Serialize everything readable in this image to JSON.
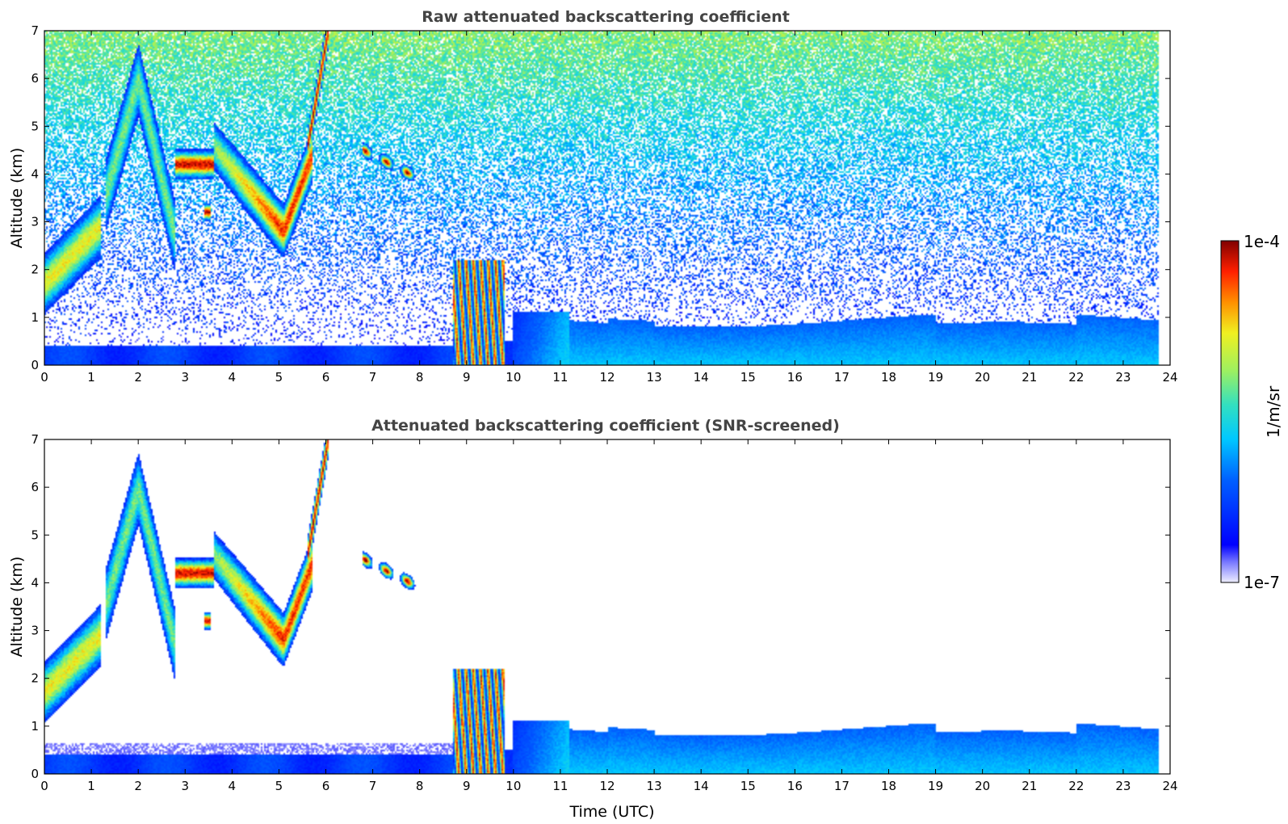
{
  "chart_data": [
    {
      "type": "heatmap",
      "title": "Raw attenuated backscattering coefficient",
      "xlabel": "",
      "ylabel": "Altitude (km)",
      "xlim": [
        0,
        24
      ],
      "ylim": [
        0,
        7
      ],
      "xticks": [
        "0",
        "1",
        "2",
        "3",
        "4",
        "5",
        "6",
        "7",
        "8",
        "9",
        "10",
        "11",
        "12",
        "13",
        "14",
        "15",
        "16",
        "17",
        "18",
        "19",
        "20",
        "21",
        "22",
        "23",
        "24"
      ],
      "yticks": [
        "0",
        "1",
        "2",
        "3",
        "4",
        "5",
        "6",
        "7"
      ],
      "data_end_hour": 23.75,
      "screened": false,
      "features": [
        {
          "name": "cloud-1",
          "t": [
            0.0,
            1.2
          ],
          "z": [
            1.4,
            3.3
          ],
          "level": 0.7
        },
        {
          "name": "cloud-2",
          "t": [
            1.3,
            2.8
          ],
          "z": [
            2.4,
            6.2
          ],
          "level": 0.55
        },
        {
          "name": "cloud-3",
          "t": [
            2.8,
            3.6
          ],
          "z": [
            3.9,
            4.5
          ],
          "level": 0.95
        },
        {
          "name": "cloud-4",
          "t": [
            3.6,
            5.7
          ],
          "z": [
            2.3,
            5.0
          ],
          "level": 0.8
        },
        {
          "name": "cloud-5",
          "t": [
            5.6,
            6.0
          ],
          "z": [
            4.0,
            7.0
          ],
          "level": 0.95
        },
        {
          "name": "cloud-6",
          "t": [
            6.8,
            8.0
          ],
          "z": [
            3.7,
            4.6
          ],
          "level": 1.0
        },
        {
          "name": "cloud-7",
          "t": [
            8.7,
            9.8
          ],
          "z": [
            0.0,
            2.2
          ],
          "level": 0.85
        },
        {
          "name": "boundary-layer",
          "t": [
            0.0,
            23.75
          ],
          "z": [
            0.0,
            1.1
          ],
          "level": 0.3
        }
      ]
    },
    {
      "type": "heatmap",
      "title": "Attenuated backscattering coefficient (SNR-screened)",
      "xlabel": "Time (UTC)",
      "ylabel": "Altitude (km)",
      "xlim": [
        0,
        24
      ],
      "ylim": [
        0,
        7
      ],
      "xticks": [
        "0",
        "1",
        "2",
        "3",
        "4",
        "5",
        "6",
        "7",
        "8",
        "9",
        "10",
        "11",
        "12",
        "13",
        "14",
        "15",
        "16",
        "17",
        "18",
        "19",
        "20",
        "21",
        "22",
        "23",
        "24"
      ],
      "yticks": [
        "0",
        "1",
        "2",
        "3",
        "4",
        "5",
        "6",
        "7"
      ],
      "data_end_hour": 23.75,
      "screened": true,
      "features": [
        {
          "name": "cloud-1",
          "t": [
            0.0,
            1.2
          ],
          "z": [
            1.3,
            3.3
          ],
          "level": 0.7
        },
        {
          "name": "cloud-2",
          "t": [
            1.3,
            2.8
          ],
          "z": [
            2.4,
            6.0
          ],
          "level": 0.55
        },
        {
          "name": "cloud-3",
          "t": [
            2.8,
            3.6
          ],
          "z": [
            3.1,
            4.5
          ],
          "level": 0.95
        },
        {
          "name": "cloud-4",
          "t": [
            3.6,
            5.7
          ],
          "z": [
            2.3,
            5.0
          ],
          "level": 0.8
        },
        {
          "name": "cloud-5",
          "t": [
            5.6,
            6.0
          ],
          "z": [
            3.0,
            6.7
          ],
          "level": 0.95
        },
        {
          "name": "cloud-6",
          "t": [
            6.8,
            8.0
          ],
          "z": [
            3.7,
            4.8
          ],
          "level": 1.0
        },
        {
          "name": "cloud-7",
          "t": [
            8.7,
            9.8
          ],
          "z": [
            0.0,
            2.3
          ],
          "level": 0.85
        },
        {
          "name": "boundary-layer",
          "t": [
            0.0,
            23.75
          ],
          "z": [
            0.0,
            1.4
          ],
          "level": 0.3
        }
      ]
    }
  ],
  "colorbar": {
    "label": "1/m/sr",
    "max_label": "1e-4",
    "min_label": "1e-7",
    "colormap": "jet"
  }
}
